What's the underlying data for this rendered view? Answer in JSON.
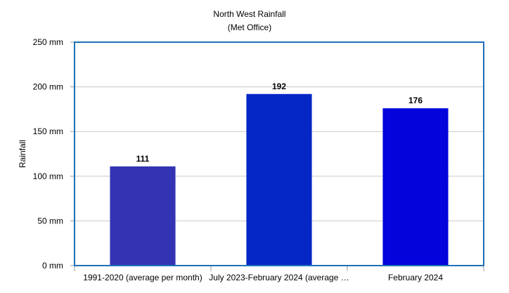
{
  "chart_data": {
    "type": "bar",
    "title": "North West Rainfall",
    "subtitle": "(Met Office)",
    "ylabel": "Rainfall",
    "xlabel": "",
    "categories": [
      "1991-2020 (average per month)",
      "July 2023-February 2024 (average …",
      "February 2024"
    ],
    "values": [
      111,
      192,
      176
    ],
    "data_labels": [
      "111",
      "192",
      "176"
    ],
    "bar_colors": [
      "#3333b3",
      "#0427c6",
      "#0303db"
    ],
    "ylim": [
      0,
      250
    ],
    "yticks": [
      0,
      50,
      100,
      150,
      200,
      250
    ],
    "ytick_labels": [
      "0 mm",
      "50 mm",
      "100 mm",
      "150 mm",
      "200 mm",
      "250 mm"
    ],
    "grid": true,
    "legend": "none",
    "frame_color": "#1f6fb8",
    "grid_color": "#c8c8c8"
  }
}
